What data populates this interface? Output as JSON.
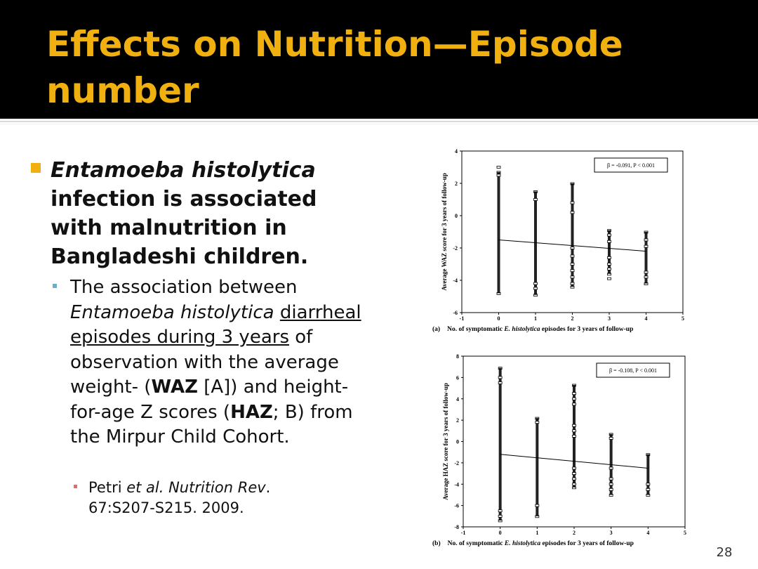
{
  "slide": {
    "title": "Effects on Nutrition—Episode number",
    "bullet1": {
      "italic": "Entamoeba histolytica",
      "rest": " infection is associated with malnutrition in Bangladeshi children."
    },
    "bullet2": {
      "t1": "The association between ",
      "t2": "Entamoeba histolytica",
      "t3": " ",
      "t4": "diarrheal episodes during 3 years",
      "t5": " of observation with the average weight- (",
      "t6": "WAZ",
      "t7": " [A]) and height-for-age Z scores (",
      "t8": "HAZ",
      "t9": "; B) from the Mirpur Child Cohort."
    },
    "bullet3": {
      "t1": "Petri ",
      "t2": "et al. Nutrition Rev",
      "t3": ". 67:S207-S215. 2009."
    },
    "page_number": "28"
  },
  "colors": {
    "title": "#f0b010",
    "title_bg": "#000000",
    "bullet1": "#f0b010",
    "bullet2": "#6aaec8",
    "bullet3": "#d87070"
  },
  "chart_data": [
    {
      "type": "scatter",
      "panel": "(a)",
      "xlabel_pre": "No. of symptomatic ",
      "xlabel_italic": "E. histolytica",
      "xlabel_post": " episodes for 3 years of follow-up",
      "ylabel": "Average WAZ score for 3 years of follow-up",
      "xlim": [
        -1,
        5
      ],
      "ylim": [
        -6,
        4
      ],
      "xticks": [
        -1,
        0,
        1,
        2,
        3,
        4,
        5
      ],
      "yticks": [
        -6,
        -4,
        -2,
        0,
        2,
        4
      ],
      "annotation": "β = -0.091, P < 0.001",
      "columns": [
        {
          "x": 0,
          "min": -4.8,
          "max": 2.7,
          "outliers": [
            3.0,
            2.5
          ]
        },
        {
          "x": 1,
          "min": -4.9,
          "max": 1.5,
          "outliers": [
            -4.2,
            -4.5,
            1.0
          ]
        },
        {
          "x": 2,
          "min": -4.4,
          "max": 2.0,
          "outliers": [
            0.8,
            0.2,
            -2.0,
            -2.5,
            -3.0,
            -3.4,
            -3.8,
            -4.2
          ]
        },
        {
          "x": 3,
          "min": -3.6,
          "max": -0.9,
          "outliers": [
            -1.2,
            -1.6,
            -2.6,
            -3.0,
            -3.3,
            -3.9
          ]
        },
        {
          "x": 4,
          "min": -4.2,
          "max": -1.0,
          "outliers": [
            -1.5,
            -1.9,
            -3.5,
            -3.8
          ]
        }
      ],
      "trend": {
        "x": [
          0,
          4
        ],
        "y": [
          -1.5,
          -2.2
        ]
      }
    },
    {
      "type": "scatter",
      "panel": "(b)",
      "xlabel_pre": "No. of symptomatic ",
      "xlabel_italic": "E. histolytica",
      "xlabel_post": " episodes for 3 years of follow-up",
      "ylabel": "Average HAZ score for 3 years of follow-up",
      "xlim": [
        -1,
        5
      ],
      "ylim": [
        -8,
        8
      ],
      "xticks": [
        -1,
        0,
        1,
        2,
        3,
        4,
        5
      ],
      "yticks": [
        -8,
        -6,
        -4,
        -2,
        0,
        2,
        4,
        6,
        8
      ],
      "annotation": "β = -0.108, P < 0.001",
      "columns": [
        {
          "x": 0,
          "min": -7.4,
          "max": 6.9,
          "outliers": [
            6.0,
            5.5,
            -6.5,
            -7.0
          ]
        },
        {
          "x": 1,
          "min": -7.0,
          "max": 2.2,
          "outliers": [
            1.8,
            -6.0
          ]
        },
        {
          "x": 2,
          "min": -4.3,
          "max": 5.3,
          "outliers": [
            4.5,
            4.0,
            3.5,
            1.5,
            1.0,
            0.5,
            -2.5,
            -3.0,
            -3.5,
            -4.0
          ]
        },
        {
          "x": 3,
          "min": -5.0,
          "max": 0.7,
          "outliers": [
            0.3,
            -2.5,
            -3.5,
            -4.0,
            -4.5
          ]
        },
        {
          "x": 4,
          "min": -5.0,
          "max": -1.2,
          "outliers": [
            -4.0,
            -4.5
          ]
        }
      ],
      "trend": {
        "x": [
          0,
          4
        ],
        "y": [
          -1.2,
          -2.5
        ]
      }
    }
  ]
}
